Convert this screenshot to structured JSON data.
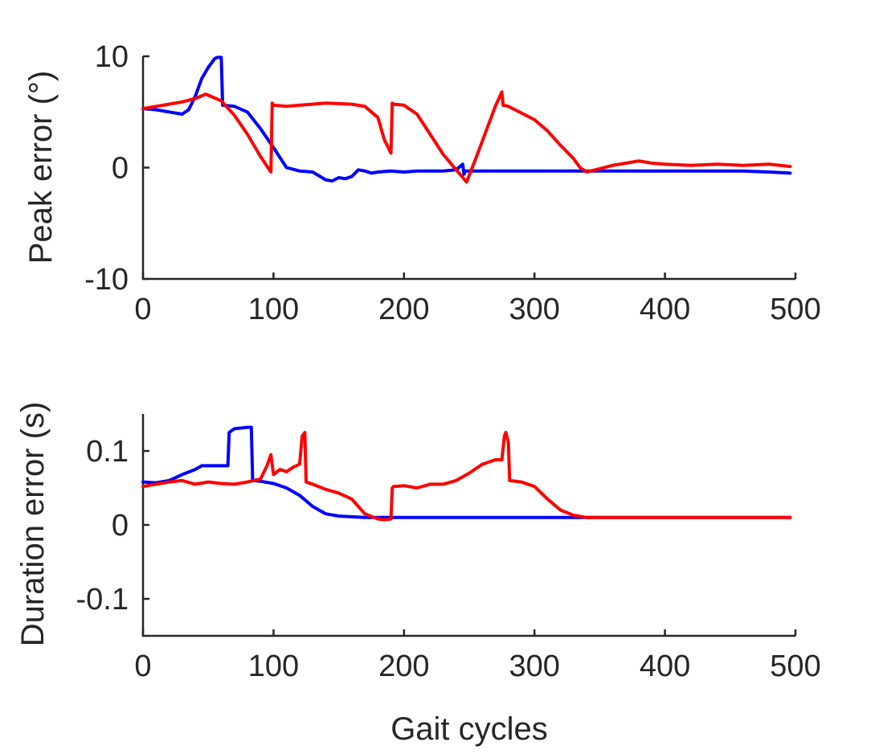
{
  "chart_data": [
    {
      "type": "line",
      "title": "",
      "xlabel": "",
      "ylabel": "Peak error (°)",
      "xlim": [
        0,
        500
      ],
      "ylim": [
        -10,
        10
      ],
      "xticks": [
        0,
        100,
        200,
        300,
        400,
        500
      ],
      "xtick_labels": [
        "0",
        "100",
        "200",
        "300",
        "400",
        "500"
      ],
      "yticks": [
        -10,
        0,
        10
      ],
      "ytick_labels": [
        "-10",
        "0",
        "10"
      ],
      "grid": false,
      "legend": "none",
      "series": [
        {
          "color": "#0000ff",
          "x": [
            0,
            10,
            20,
            30,
            35,
            40,
            45,
            50,
            55,
            57,
            60,
            61,
            70,
            80,
            90,
            100,
            110,
            120,
            130,
            140,
            145,
            150,
            155,
            160,
            165,
            170,
            175,
            180,
            190,
            200,
            210,
            220,
            230,
            240,
            245,
            246,
            247,
            250,
            260,
            270,
            280,
            300,
            320,
            340,
            360,
            380,
            400,
            420,
            440,
            460,
            480,
            496
          ],
          "y": [
            5.3,
            5.2,
            5.0,
            4.8,
            5.2,
            6.4,
            8.0,
            9.0,
            9.8,
            9.9,
            9.9,
            5.6,
            5.5,
            5.0,
            3.5,
            1.8,
            0.0,
            -0.3,
            -0.4,
            -1.1,
            -1.2,
            -0.9,
            -1.0,
            -0.8,
            -0.2,
            -0.3,
            -0.5,
            -0.4,
            -0.3,
            -0.4,
            -0.3,
            -0.3,
            -0.3,
            -0.2,
            0.3,
            -0.6,
            -0.3,
            -0.3,
            -0.3,
            -0.3,
            -0.3,
            -0.3,
            -0.3,
            -0.3,
            -0.3,
            -0.3,
            -0.3,
            -0.3,
            -0.3,
            -0.3,
            -0.4,
            -0.5
          ]
        },
        {
          "color": "#ff0000",
          "x": [
            0,
            10,
            20,
            30,
            40,
            48,
            60,
            70,
            80,
            90,
            98,
            99,
            100,
            110,
            120,
            140,
            160,
            170,
            180,
            185,
            190,
            191,
            192,
            200,
            210,
            220,
            230,
            240,
            248,
            255,
            262,
            270,
            275,
            276,
            280,
            300,
            310,
            320,
            330,
            335,
            340,
            350,
            360,
            370,
            380,
            390,
            400,
            420,
            440,
            460,
            480,
            496
          ],
          "y": [
            5.3,
            5.5,
            5.7,
            5.9,
            6.2,
            6.6,
            6.0,
            4.7,
            3.0,
            1.0,
            -0.4,
            5.8,
            5.6,
            5.5,
            5.6,
            5.8,
            5.7,
            5.5,
            4.5,
            2.5,
            1.3,
            5.8,
            5.7,
            5.6,
            4.8,
            3.0,
            1.2,
            -0.2,
            -1.3,
            0.8,
            3.0,
            5.5,
            6.8,
            5.6,
            5.5,
            4.3,
            3.3,
            2.0,
            0.8,
            0.0,
            -0.4,
            -0.1,
            0.2,
            0.4,
            0.6,
            0.4,
            0.3,
            0.2,
            0.3,
            0.2,
            0.3,
            0.1
          ]
        }
      ]
    },
    {
      "type": "line",
      "title": "",
      "xlabel": "Gait cycles",
      "ylabel": "Duration error (s)",
      "xlim": [
        0,
        500
      ],
      "ylim": [
        -0.15,
        0.15
      ],
      "xticks": [
        0,
        100,
        200,
        300,
        400,
        500
      ],
      "xtick_labels": [
        "0",
        "100",
        "200",
        "300",
        "400",
        "500"
      ],
      "yticks": [
        -0.1,
        0,
        0.1
      ],
      "ytick_labels": [
        "-0.1",
        "0",
        "0.1"
      ],
      "grid": false,
      "legend": "none",
      "series": [
        {
          "color": "#0000ff",
          "x": [
            0,
            10,
            20,
            30,
            40,
            45,
            50,
            60,
            65,
            66,
            70,
            75,
            80,
            83,
            84,
            85,
            90,
            100,
            110,
            120,
            130,
            140,
            150,
            160,
            170,
            180,
            190,
            200,
            250,
            300,
            350,
            400,
            450,
            496
          ],
          "y": [
            0.058,
            0.057,
            0.06,
            0.068,
            0.075,
            0.08,
            0.08,
            0.08,
            0.08,
            0.125,
            0.13,
            0.131,
            0.132,
            0.132,
            0.062,
            0.06,
            0.059,
            0.056,
            0.05,
            0.04,
            0.025,
            0.015,
            0.012,
            0.011,
            0.01,
            0.01,
            0.01,
            0.01,
            0.01,
            0.01,
            0.01,
            0.01,
            0.01,
            0.01
          ]
        },
        {
          "color": "#ff0000",
          "x": [
            0,
            10,
            20,
            30,
            40,
            50,
            60,
            70,
            80,
            90,
            95,
            98,
            100,
            105,
            110,
            115,
            120,
            122,
            124,
            125,
            130,
            140,
            150,
            160,
            170,
            180,
            185,
            190,
            191,
            192,
            200,
            210,
            220,
            230,
            240,
            250,
            260,
            270,
            275,
            277,
            278,
            280,
            281,
            290,
            300,
            310,
            320,
            330,
            340,
            360,
            380,
            400,
            420,
            440,
            460,
            480,
            496
          ],
          "y": [
            0.052,
            0.055,
            0.058,
            0.06,
            0.055,
            0.058,
            0.056,
            0.055,
            0.058,
            0.062,
            0.08,
            0.095,
            0.068,
            0.075,
            0.072,
            0.078,
            0.082,
            0.12,
            0.125,
            0.058,
            0.055,
            0.048,
            0.043,
            0.035,
            0.015,
            0.008,
            0.007,
            0.008,
            0.05,
            0.052,
            0.053,
            0.05,
            0.055,
            0.055,
            0.06,
            0.07,
            0.082,
            0.088,
            0.088,
            0.12,
            0.125,
            0.112,
            0.06,
            0.058,
            0.052,
            0.035,
            0.02,
            0.013,
            0.01,
            0.01,
            0.01,
            0.01,
            0.01,
            0.01,
            0.01,
            0.01,
            0.01
          ]
        }
      ]
    }
  ]
}
